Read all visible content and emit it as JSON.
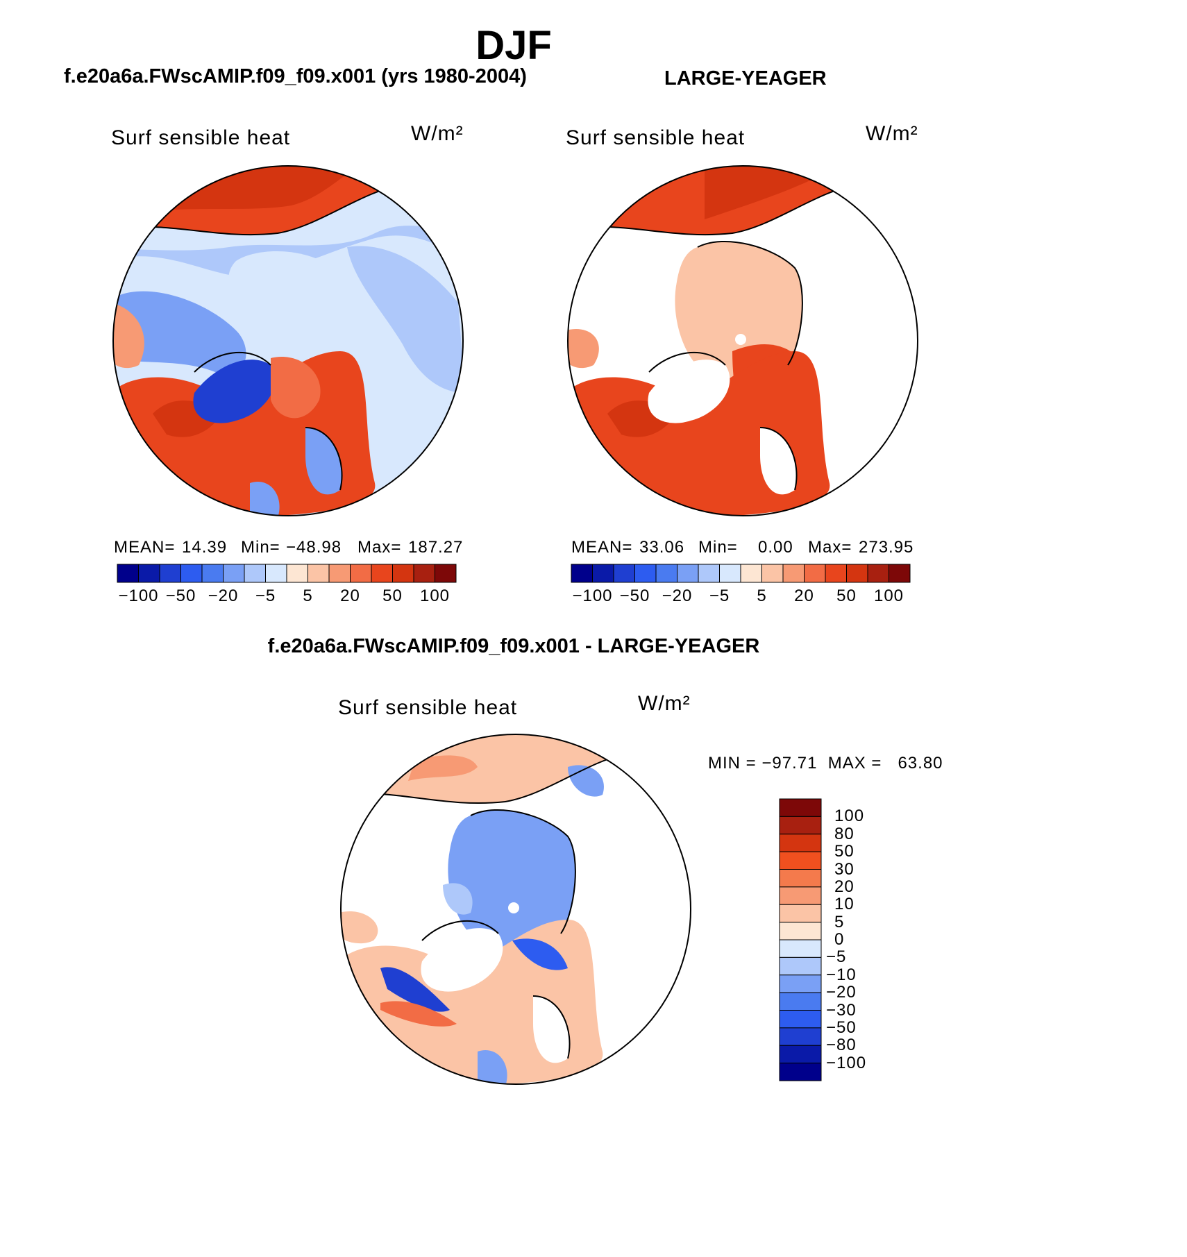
{
  "figure": {
    "title": "DJF",
    "left_case_title": "f.e20a6a.FWscAMIP.f09_f09.x001 (yrs 1980-2004)",
    "right_case_title": "LARGE-YEAGER",
    "diff_title": "f.e20a6a.FWscAMIP.f09_f09.x001 - LARGE-YEAGER"
  },
  "panels": {
    "model": {
      "variable": "Surf sensible heat",
      "units": "W/m²",
      "stats": {
        "mean_label": "MEAN=",
        "mean": "14.39",
        "min_label": "Min=",
        "min": "−48.98",
        "max_label": "Max=",
        "max": "187.27"
      }
    },
    "obs": {
      "variable": "Surf sensible heat",
      "units": "W/m²",
      "stats": {
        "mean_label": "MEAN=",
        "mean": "33.06",
        "min_label": "Min=",
        "min": "0.00",
        "max_label": "Max=",
        "max": "273.95"
      }
    },
    "diff": {
      "variable": "Surf sensible heat",
      "units": "W/m²",
      "minmax": "MIN = −97.71  MAX =   63.80"
    }
  },
  "colorbar_h": {
    "colors": [
      "#00008b",
      "#0a1aa8",
      "#1f3fd1",
      "#2d5cf0",
      "#4a7bf0",
      "#7aa0f5",
      "#aec8fa",
      "#d8e8fd",
      "#fde6d3",
      "#fbc4a6",
      "#f79a74",
      "#f26c45",
      "#e8451d",
      "#d43510",
      "#a82010",
      "#7d0808"
    ],
    "labels": [
      "−100",
      "−50",
      "−20",
      "−5",
      "5",
      "20",
      "50",
      "100"
    ]
  },
  "colorbar_v": {
    "colors": [
      "#7d0808",
      "#a82010",
      "#d43510",
      "#f0501f",
      "#f47a4c",
      "#f79a74",
      "#fbc4a6",
      "#fde6d3",
      "#d8e8fd",
      "#aec8fa",
      "#7aa0f5",
      "#4a7bf0",
      "#2d5cf0",
      "#1f3fd1",
      "#0a1aa8",
      "#00008b"
    ],
    "labels": [
      "100",
      "80",
      "50",
      "30",
      "20",
      "10",
      "5",
      "0",
      "−5",
      "−10",
      "−20",
      "−30",
      "−50",
      "−80",
      "−100"
    ]
  }
}
